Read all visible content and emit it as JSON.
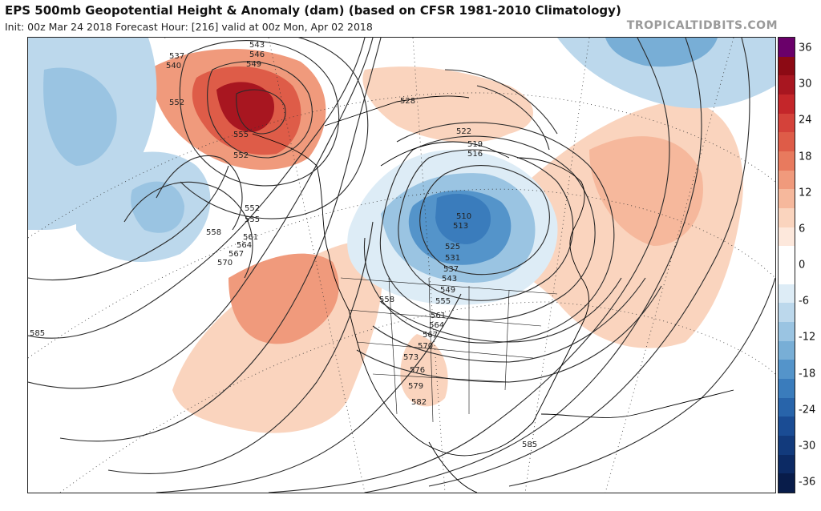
{
  "title": "EPS 500mb Geopotential Height & Anomaly (dam) (based on CFSR 1981-2010 Climatology)",
  "subtitle": "Init: 00z Mar 24 2018   Forecast Hour: [216]   valid at 00z Mon, Apr 02 2018",
  "watermark": "TROPICALTIDBITS.COM",
  "colorbar": {
    "ticks": [
      "36",
      "30",
      "24",
      "18",
      "12",
      "6",
      "0",
      "-6",
      "-12",
      "-18",
      "-24",
      "-30",
      "-36"
    ],
    "colors": [
      "#6a006a",
      "#8c0a14",
      "#a81620",
      "#c4262a",
      "#d4423a",
      "#de5c48",
      "#e87a5e",
      "#f09a7c",
      "#f6b89c",
      "#fad4be",
      "#fde8dc",
      "#ffffff",
      "#ffffff",
      "#ddecf6",
      "#bcd8ec",
      "#9ac4e2",
      "#78aed6",
      "#5494ca",
      "#3a7cbc",
      "#2864aa",
      "#1a4c94",
      "#123a7c",
      "#0c2a64",
      "#081c4a"
    ]
  },
  "height_labels": [
    "537",
    "540",
    "543",
    "546",
    "549",
    "552",
    "555",
    "552",
    "528",
    "522",
    "519",
    "516",
    "510",
    "513",
    "525",
    "531",
    "537",
    "543",
    "549",
    "555",
    "558",
    "561",
    "564",
    "567",
    "570",
    "573",
    "576",
    "579",
    "582",
    "552",
    "555",
    "558",
    "561",
    "564",
    "567",
    "570",
    "585",
    "585"
  ]
}
